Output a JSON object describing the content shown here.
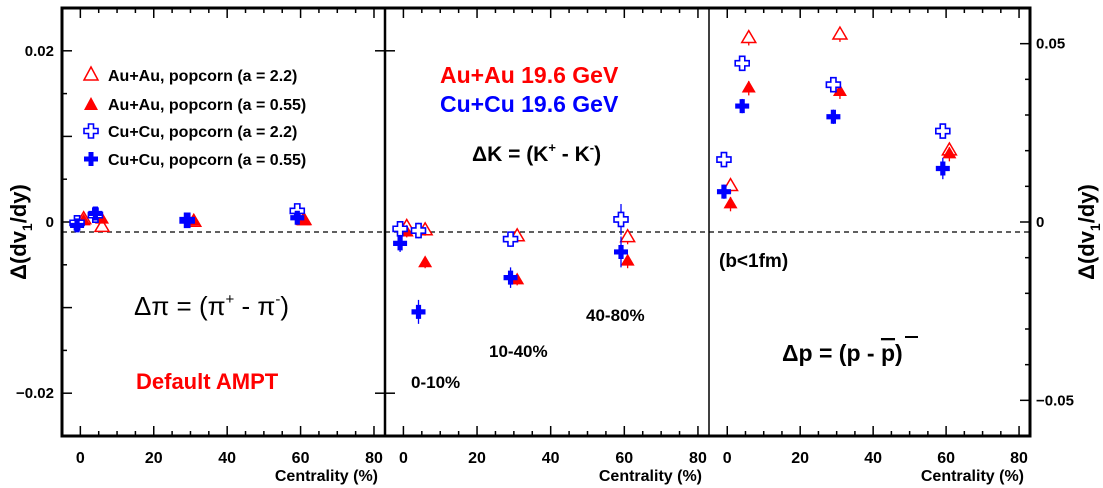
{
  "colors": {
    "red": "#ff0000",
    "blue": "#0000ff",
    "black": "#000000"
  },
  "legend": [
    {
      "label": "Au+Au, popcorn (a = 2.2)",
      "symbol": "open-triangle",
      "color": "#ff0000"
    },
    {
      "label": "Au+Au, popcorn (a = 0.55)",
      "symbol": "filled-triangle",
      "color": "#ff0000"
    },
    {
      "label": "Cu+Cu, popcorn (a = 2.2)",
      "symbol": "open-cross",
      "color": "#0000ff"
    },
    {
      "label": "Cu+Cu, popcorn (a = 0.55)",
      "symbol": "filled-cross",
      "color": "#0000ff"
    }
  ],
  "texts": {
    "default_ampt": "Default AMPT",
    "system_auau": "Au+Au 19.6 GeV",
    "system_cucu": "Cu+Cu 19.6 GeV",
    "bcut": "(b<1fm)",
    "cent_010": "0-10%",
    "cent_1040": "10-40%",
    "cent_4080": "40-80%",
    "delta_prefix": "Δ",
    "pi_eq": "π = (π",
    "pi_mid": " - π",
    "k_eq": "K = (K",
    "k_mid": " - K",
    "p_eq": "p = (p - ",
    "p_bar": "p",
    "plus": "+",
    "minus": "-",
    "close": ")",
    "ylabel_left": "Δ(dv",
    "ylabel_sub": "1",
    "ylabel_right": "/dy)"
  },
  "chart_data": [
    {
      "type": "scatter",
      "panel": "pion",
      "xlabel": "Centrality (%)",
      "xlim": [
        -5,
        83
      ],
      "ylim": [
        -0.025,
        0.025
      ],
      "x_ticks": [
        "0",
        "20",
        "40",
        "60",
        "80"
      ],
      "y_ticks": [
        {
          "value": 0.02,
          "label": "0.02"
        },
        {
          "value": 0,
          "label": "0"
        },
        {
          "value": -0.02,
          "label": "−0.02"
        }
      ],
      "series": [
        {
          "name": "Au+Au, popcorn (a = 2.2)",
          "symbol": "open-triangle",
          "color": "#ff0000",
          "points": [
            {
              "x": 0,
              "y": 0.0003,
              "err": 0.0003
            },
            {
              "x": 5,
              "y": -0.0006,
              "err": 0.0003
            },
            {
              "x": 30,
              "y": 0.0,
              "err": 0.0003
            },
            {
              "x": 60,
              "y": 0.0002,
              "err": 0.0003
            }
          ]
        },
        {
          "name": "Au+Au, popcorn (a = 0.55)",
          "symbol": "filled-triangle",
          "color": "#ff0000",
          "points": [
            {
              "x": 0,
              "y": 0.0001,
              "err": 0.0003
            },
            {
              "x": 5,
              "y": 0.0003,
              "err": 0.0003
            },
            {
              "x": 30,
              "y": 0.0001,
              "err": 0.0003
            },
            {
              "x": 60,
              "y": 0.0001,
              "err": 0.0003
            }
          ]
        },
        {
          "name": "Cu+Cu, popcorn (a = 2.2)",
          "symbol": "open-cross",
          "color": "#0000ff",
          "points": [
            {
              "x": 0,
              "y": -0.0001,
              "err": 0.0004
            },
            {
              "x": 5,
              "y": 0.0008,
              "err": 0.0004
            },
            {
              "x": 30,
              "y": 0.0002,
              "err": 0.0004
            },
            {
              "x": 60,
              "y": 0.0013,
              "err": 0.0004
            }
          ]
        },
        {
          "name": "Cu+Cu, popcorn (a = 0.55)",
          "symbol": "filled-cross",
          "color": "#0000ff",
          "points": [
            {
              "x": 0,
              "y": -0.0004,
              "err": 0.0004
            },
            {
              "x": 5,
              "y": 0.001,
              "err": 0.0004
            },
            {
              "x": 30,
              "y": 0.0002,
              "err": 0.0004
            },
            {
              "x": 60,
              "y": 0.0005,
              "err": 0.0004
            }
          ]
        }
      ]
    },
    {
      "type": "scatter",
      "panel": "kaon",
      "xlabel": "Centrality (%)",
      "xlim": [
        -5,
        83
      ],
      "ylim": [
        -0.025,
        0.025
      ],
      "x_ticks": [
        "0",
        "20",
        "40",
        "60",
        "80"
      ],
      "series": [
        {
          "name": "Au+Au, popcorn (a = 2.2)",
          "symbol": "open-triangle",
          "color": "#ff0000",
          "points": [
            {
              "x": 0,
              "y": -0.0006,
              "err": 0.0006
            },
            {
              "x": 5,
              "y": -0.001,
              "err": 0.0006
            },
            {
              "x": 30,
              "y": -0.0017,
              "err": 0.0006
            },
            {
              "x": 60,
              "y": -0.0018,
              "err": 0.0008
            }
          ]
        },
        {
          "name": "Au+Au, popcorn (a = 0.55)",
          "symbol": "filled-triangle",
          "color": "#ff0000",
          "points": [
            {
              "x": 0,
              "y": -0.0012,
              "err": 0.0006
            },
            {
              "x": 5,
              "y": -0.0048,
              "err": 0.0006
            },
            {
              "x": 30,
              "y": -0.0068,
              "err": 0.0006
            },
            {
              "x": 60,
              "y": -0.0046,
              "err": 0.0008
            }
          ]
        },
        {
          "name": "Cu+Cu, popcorn (a = 2.2)",
          "symbol": "open-cross",
          "color": "#0000ff",
          "points": [
            {
              "x": 0,
              "y": -0.0008,
              "err": 0.0009
            },
            {
              "x": 5,
              "y": -0.001,
              "err": 0.0009
            },
            {
              "x": 30,
              "y": -0.002,
              "err": 0.0009
            },
            {
              "x": 60,
              "y": 0.0003,
              "err": 0.0018
            }
          ]
        },
        {
          "name": "Cu+Cu, popcorn (a = 0.55)",
          "symbol": "filled-cross",
          "color": "#0000ff",
          "points": [
            {
              "x": 0,
              "y": -0.0025,
              "err": 0.001
            },
            {
              "x": 5,
              "y": -0.0105,
              "err": 0.0014
            },
            {
              "x": 30,
              "y": -0.0065,
              "err": 0.0012
            },
            {
              "x": 60,
              "y": -0.0035,
              "err": 0.0018
            }
          ]
        }
      ]
    },
    {
      "type": "scatter",
      "panel": "proton",
      "xlabel": "Centrality (%)",
      "xlim": [
        -5,
        83
      ],
      "ylim": [
        -0.06,
        0.06
      ],
      "x_ticks": [
        "0",
        "20",
        "40",
        "60",
        "80"
      ],
      "y_ticks": [
        {
          "value": 0.05,
          "label": "0.05"
        },
        {
          "value": 0,
          "label": "0"
        },
        {
          "value": -0.05,
          "label": "−0.05"
        }
      ],
      "series": [
        {
          "name": "Au+Au, popcorn (a = 2.2)",
          "symbol": "open-triangle",
          "color": "#ff0000",
          "points": [
            {
              "x": 0,
              "y": 0.01,
              "err": 0.002
            },
            {
              "x": 5,
              "y": 0.0515,
              "err": 0.002
            },
            {
              "x": 30,
              "y": 0.0525,
              "err": 0.002
            },
            {
              "x": 60,
              "y": 0.02,
              "err": 0.002
            }
          ]
        },
        {
          "name": "Au+Au, popcorn (a = 0.55)",
          "symbol": "filled-triangle",
          "color": "#ff0000",
          "points": [
            {
              "x": 0,
              "y": 0.005,
              "err": 0.002
            },
            {
              "x": 5,
              "y": 0.0375,
              "err": 0.002
            },
            {
              "x": 30,
              "y": 0.0365,
              "err": 0.002
            },
            {
              "x": 60,
              "y": 0.019,
              "err": 0.002
            }
          ]
        },
        {
          "name": "Cu+Cu, popcorn (a = 2.2)",
          "symbol": "open-cross",
          "color": "#0000ff",
          "points": [
            {
              "x": 0,
              "y": 0.0175,
              "err": 0.002
            },
            {
              "x": 5,
              "y": 0.0445,
              "err": 0.002
            },
            {
              "x": 30,
              "y": 0.0385,
              "err": 0.002
            },
            {
              "x": 60,
              "y": 0.0255,
              "err": 0.002
            }
          ]
        },
        {
          "name": "Cu+Cu, popcorn (a = 0.55)",
          "symbol": "filled-cross",
          "color": "#0000ff",
          "points": [
            {
              "x": 0,
              "y": 0.0085,
              "err": 0.002
            },
            {
              "x": 5,
              "y": 0.0325,
              "err": 0.002
            },
            {
              "x": 30,
              "y": 0.0295,
              "err": 0.002
            },
            {
              "x": 60,
              "y": 0.015,
              "err": 0.003
            }
          ]
        }
      ]
    }
  ]
}
